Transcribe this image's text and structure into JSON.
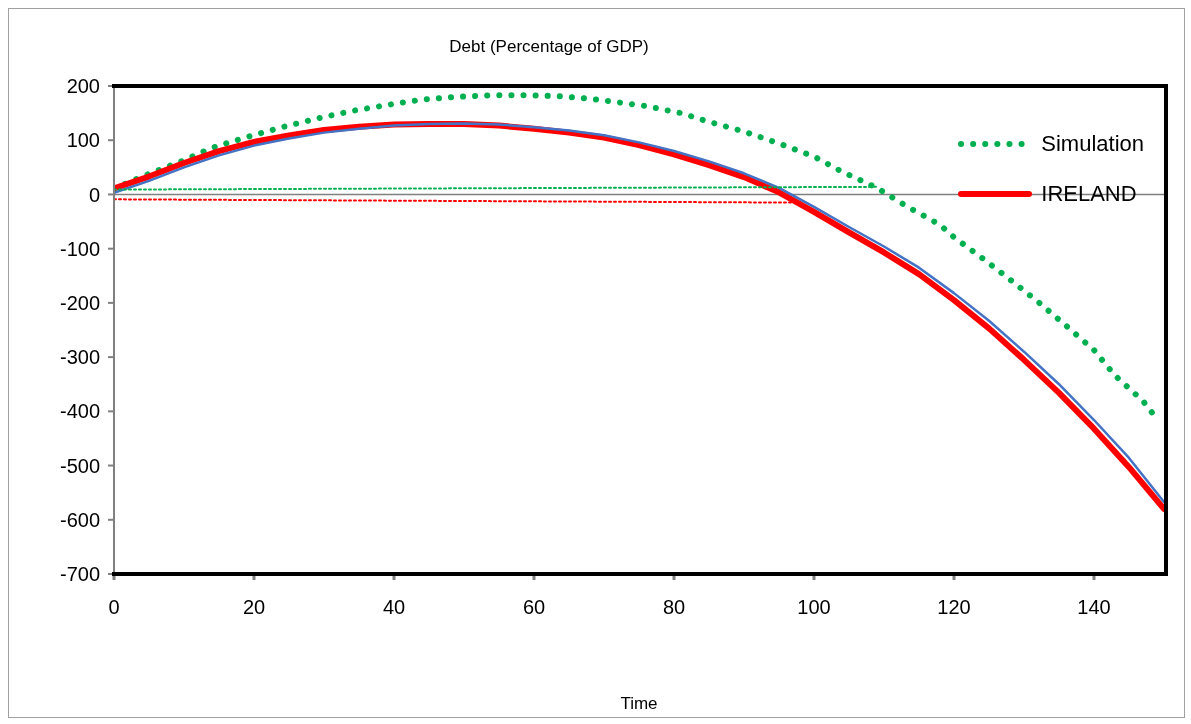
{
  "chart_data": {
    "type": "line",
    "title": "Debt (Percentage of GDP)",
    "xlabel": "Time",
    "xlim": [
      0,
      150
    ],
    "xticks": [
      0,
      20,
      40,
      60,
      80,
      100,
      120,
      140
    ],
    "ylim": [
      -700,
      200
    ],
    "yticks": [
      200,
      100,
      0,
      -100,
      -200,
      -300,
      -400,
      -500,
      -600,
      -700
    ],
    "grid": false,
    "legend": "top right",
    "marker": "none",
    "ref_lines": [
      {
        "axis": "y",
        "value": 0,
        "color": "#808080"
      }
    ],
    "series": [
      {
        "name": "Simulation",
        "color": "#00b050",
        "line_style": "dotted",
        "x": [
          0,
          5,
          10,
          14,
          19,
          24,
          29,
          34,
          39,
          44,
          49,
          54,
          59,
          64,
          69,
          76,
          81,
          85,
          90,
          95,
          100,
          104,
          109,
          113,
          118,
          120,
          124,
          128,
          132,
          136,
          140,
          143,
          147,
          149
        ],
        "values": [
          11,
          38,
          63,
          86,
          106,
          124,
          140,
          154,
          165,
          175,
          180,
          183,
          183,
          181,
          175,
          163,
          150,
          134,
          116,
          94,
          70,
          42,
          12,
          -20,
          -56,
          -79,
          -117,
          -157,
          -198,
          -242,
          -287,
          -334,
          -381,
          -414
        ]
      },
      {
        "name": "IRELAND",
        "color": "#ff0000",
        "line_style": "solid",
        "x": [
          0,
          5,
          10,
          15,
          20,
          25,
          30,
          35,
          40,
          45,
          50,
          55,
          60,
          65,
          70,
          75,
          80,
          85,
          90,
          95,
          100,
          105,
          110,
          115,
          120,
          125,
          130,
          135,
          140,
          145,
          150
        ],
        "values": [
          11,
          33,
          58,
          80,
          97,
          109,
          119,
          125,
          129,
          130,
          130,
          127,
          121,
          114,
          105,
          91,
          74,
          54,
          32,
          4,
          -32,
          -70,
          -107,
          -147,
          -195,
          -247,
          -305,
          -366,
          -432,
          -503,
          -580
        ]
      },
      {
        "color": "#4472c4",
        "line_style": "solid",
        "x": [
          0,
          5,
          10,
          15,
          20,
          25,
          30,
          35,
          40,
          45,
          50,
          55,
          60,
          65,
          70,
          75,
          80,
          85,
          90,
          95,
          100,
          105,
          110,
          115,
          120,
          125,
          130,
          135,
          140,
          145,
          150
        ],
        "values": [
          3,
          25,
          50,
          72,
          90,
          103,
          114,
          121,
          127,
          130,
          131,
          129,
          124,
          118,
          109,
          96,
          80,
          61,
          39,
          12,
          -23,
          -60,
          -96,
          -135,
          -182,
          -233,
          -290,
          -350,
          -416,
          -486,
          -567
        ]
      },
      {
        "color": "#00b050",
        "line_style": "dotted",
        "x": [
          0,
          109
        ],
        "values": [
          9,
          14
        ]
      },
      {
        "color": "#ff0000",
        "line_style": "dotted",
        "x": [
          0,
          97
        ],
        "values": [
          -9,
          -15
        ]
      }
    ]
  }
}
